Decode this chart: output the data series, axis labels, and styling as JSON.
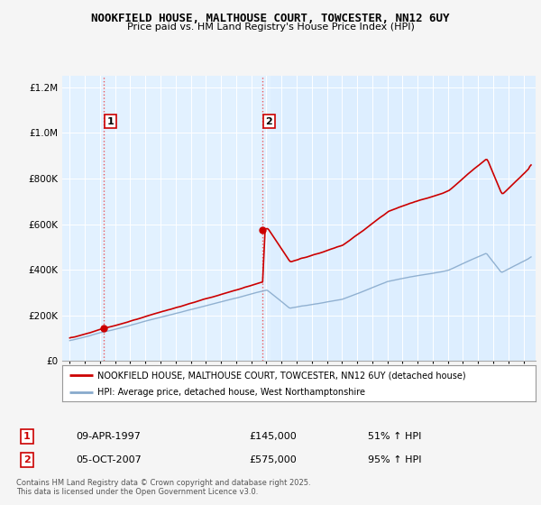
{
  "title": "NOOKFIELD HOUSE, MALTHOUSE COURT, TOWCESTER, NN12 6UY",
  "subtitle": "Price paid vs. HM Land Registry's House Price Index (HPI)",
  "line1_color": "#cc0000",
  "line2_color": "#88aacc",
  "sale1_date_x": 1997.27,
  "sale1_price": 145000,
  "sale2_date_x": 2007.75,
  "sale2_price": 575000,
  "legend_line1": "NOOKFIELD HOUSE, MALTHOUSE COURT, TOWCESTER, NN12 6UY (detached house)",
  "legend_line2": "HPI: Average price, detached house, West Northamptonshire",
  "footer_note": "Contains HM Land Registry data © Crown copyright and database right 2025.\nThis data is licensed under the Open Government Licence v3.0.",
  "ylim": [
    0,
    1250000
  ],
  "xlim_start": 1994.5,
  "xlim_end": 2025.8,
  "plot_bg_color": "#ddeeff",
  "fig_bg_color": "#f5f5f5"
}
